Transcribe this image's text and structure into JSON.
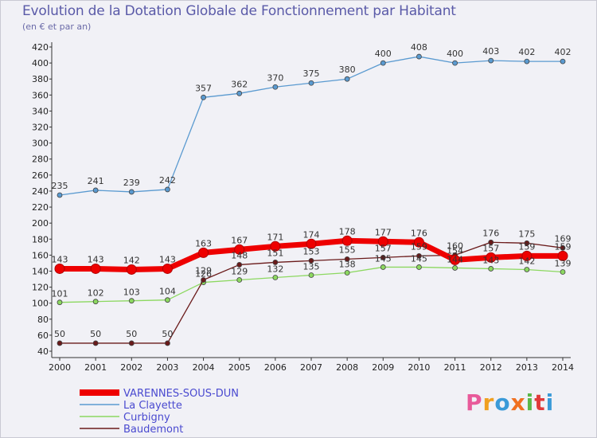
{
  "title": "Evolution de la Dotation Globale de Fonctionnement par Habitant",
  "subtitle": "(en € et par an)",
  "logo": "Proxiti",
  "chart_data": {
    "type": "line",
    "title": "Evolution de la Dotation Globale de Fonctionnement par Habitant",
    "subtitle": "(en € et par an)",
    "x": [
      2000,
      2001,
      2002,
      2003,
      2004,
      2005,
      2006,
      2007,
      2008,
      2009,
      2010,
      2011,
      2012,
      2013,
      2014
    ],
    "ylim": [
      40,
      420
    ],
    "yticks": [
      40,
      60,
      80,
      100,
      120,
      140,
      160,
      180,
      200,
      220,
      240,
      260,
      280,
      300,
      320,
      340,
      360,
      380,
      400,
      420
    ],
    "grid": false,
    "legend_position": "bottom-left",
    "series": [
      {
        "name": "VARENNES-SOUS-DUN",
        "color": "#ee0000",
        "values": [
          143,
          143,
          142,
          143,
          163,
          167,
          171,
          174,
          178,
          177,
          176,
          154,
          157,
          159,
          159
        ]
      },
      {
        "name": "La Clayette",
        "color": "#5a9ad0",
        "values": [
          235,
          241,
          239,
          242,
          357,
          362,
          370,
          375,
          380,
          400,
          408,
          400,
          403,
          402,
          402
        ]
      },
      {
        "name": "Curbigny",
        "color": "#8cd860",
        "values": [
          101,
          102,
          103,
          104,
          126,
          129,
          132,
          135,
          138,
          145,
          145,
          144,
          143,
          142,
          139
        ]
      },
      {
        "name": "Baudemont",
        "color": "#6a1a1a",
        "values": [
          50,
          50,
          50,
          50,
          129,
          148,
          151,
          153,
          155,
          157,
          159,
          160,
          176,
          175,
          169
        ]
      }
    ]
  }
}
